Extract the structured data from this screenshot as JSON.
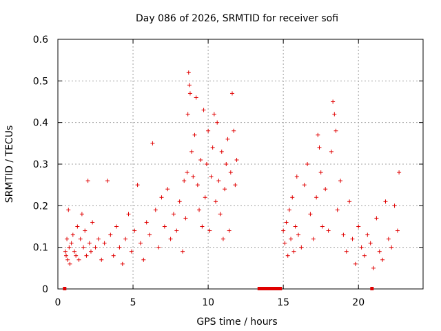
{
  "chart_data": {
    "type": "scatter",
    "title": "Day 086 of 2026, SRMTID for receiver sofi",
    "xlabel": "GPS time / hours",
    "ylabel": "SRMTID / TECUs",
    "xlim": [
      0,
      24.3
    ],
    "ylim": [
      0,
      0.6
    ],
    "xticks": [
      0,
      5,
      10,
      15,
      20
    ],
    "xtick_labels": [
      "0",
      "5",
      "10",
      "15",
      "20"
    ],
    "yticks": [
      0,
      0.1,
      0.2,
      0.3,
      0.4,
      0.5,
      0.6
    ],
    "ytick_labels": [
      "0",
      "0.1",
      "0.2",
      "0.3",
      "0.4",
      "0.5",
      "0.6"
    ],
    "grid": true,
    "marker": "plus",
    "color": "#e00000",
    "series": [
      {
        "name": "SRMTID",
        "x": [
          0.5,
          0.55,
          0.6,
          0.65,
          0.7,
          0.75,
          0.8,
          0.9,
          1.0,
          1.1,
          1.2,
          1.3,
          1.4,
          1.5,
          1.6,
          1.7,
          1.8,
          1.9,
          2.0,
          2.1,
          2.2,
          2.3,
          2.5,
          2.7,
          2.9,
          3.1,
          3.3,
          3.5,
          3.7,
          3.9,
          4.1,
          4.3,
          4.5,
          4.7,
          4.9,
          5.1,
          5.3,
          5.5,
          5.7,
          5.9,
          6.1,
          6.3,
          6.5,
          6.7,
          6.9,
          7.1,
          7.3,
          7.5,
          7.7,
          7.9,
          8.1,
          8.3,
          8.4,
          8.5,
          8.6,
          8.65,
          8.7,
          8.75,
          8.8,
          8.9,
          9.0,
          9.1,
          9.2,
          9.3,
          9.4,
          9.5,
          9.6,
          9.7,
          9.8,
          9.9,
          10.0,
          10.1,
          10.2,
          10.3,
          10.4,
          10.5,
          10.6,
          10.7,
          10.8,
          10.9,
          11.0,
          11.1,
          11.2,
          11.3,
          11.4,
          11.5,
          11.6,
          11.7,
          11.8,
          11.9,
          15.0,
          15.1,
          15.2,
          15.3,
          15.4,
          15.5,
          15.6,
          15.7,
          15.8,
          15.9,
          16.0,
          16.2,
          16.4,
          16.6,
          16.8,
          17.0,
          17.2,
          17.3,
          17.4,
          17.5,
          17.6,
          17.8,
          18.0,
          18.2,
          18.3,
          18.4,
          18.5,
          18.6,
          18.8,
          19.0,
          19.2,
          19.4,
          19.6,
          19.8,
          20.0,
          20.2,
          20.4,
          20.6,
          20.8,
          21.0,
          21.2,
          21.4,
          21.6,
          21.8,
          22.0,
          22.2,
          22.4,
          22.6,
          22.7
        ],
        "y": [
          0.09,
          0.08,
          0.12,
          0.07,
          0.19,
          0.1,
          0.06,
          0.11,
          0.13,
          0.09,
          0.08,
          0.15,
          0.07,
          0.12,
          0.18,
          0.1,
          0.14,
          0.08,
          0.26,
          0.11,
          0.09,
          0.16,
          0.1,
          0.12,
          0.07,
          0.11,
          0.26,
          0.13,
          0.08,
          0.15,
          0.1,
          0.06,
          0.12,
          0.18,
          0.09,
          0.14,
          0.25,
          0.11,
          0.07,
          0.16,
          0.13,
          0.35,
          0.19,
          0.1,
          0.22,
          0.15,
          0.24,
          0.12,
          0.18,
          0.14,
          0.21,
          0.09,
          0.26,
          0.17,
          0.28,
          0.42,
          0.52,
          0.49,
          0.47,
          0.33,
          0.27,
          0.37,
          0.46,
          0.25,
          0.19,
          0.31,
          0.15,
          0.43,
          0.22,
          0.3,
          0.38,
          0.14,
          0.27,
          0.34,
          0.42,
          0.21,
          0.4,
          0.26,
          0.18,
          0.33,
          0.12,
          0.24,
          0.3,
          0.36,
          0.14,
          0.28,
          0.47,
          0.38,
          0.25,
          0.31,
          0.14,
          0.11,
          0.16,
          0.08,
          0.19,
          0.12,
          0.22,
          0.09,
          0.15,
          0.27,
          0.13,
          0.1,
          0.25,
          0.3,
          0.18,
          0.12,
          0.22,
          0.37,
          0.34,
          0.28,
          0.15,
          0.24,
          0.14,
          0.33,
          0.45,
          0.42,
          0.38,
          0.19,
          0.26,
          0.13,
          0.09,
          0.21,
          0.12,
          0.06,
          0.15,
          0.1,
          0.08,
          0.13,
          0.11,
          0.05,
          0.17,
          0.09,
          0.07,
          0.21,
          0.12,
          0.1,
          0.2,
          0.14,
          0.28
        ],
        "zero_x": [
          0.45,
          13.4,
          13.5,
          13.6,
          13.7,
          13.8,
          13.9,
          14.0,
          14.1,
          14.2,
          14.3,
          14.4,
          14.5,
          14.6,
          14.8,
          20.9
        ]
      }
    ]
  }
}
